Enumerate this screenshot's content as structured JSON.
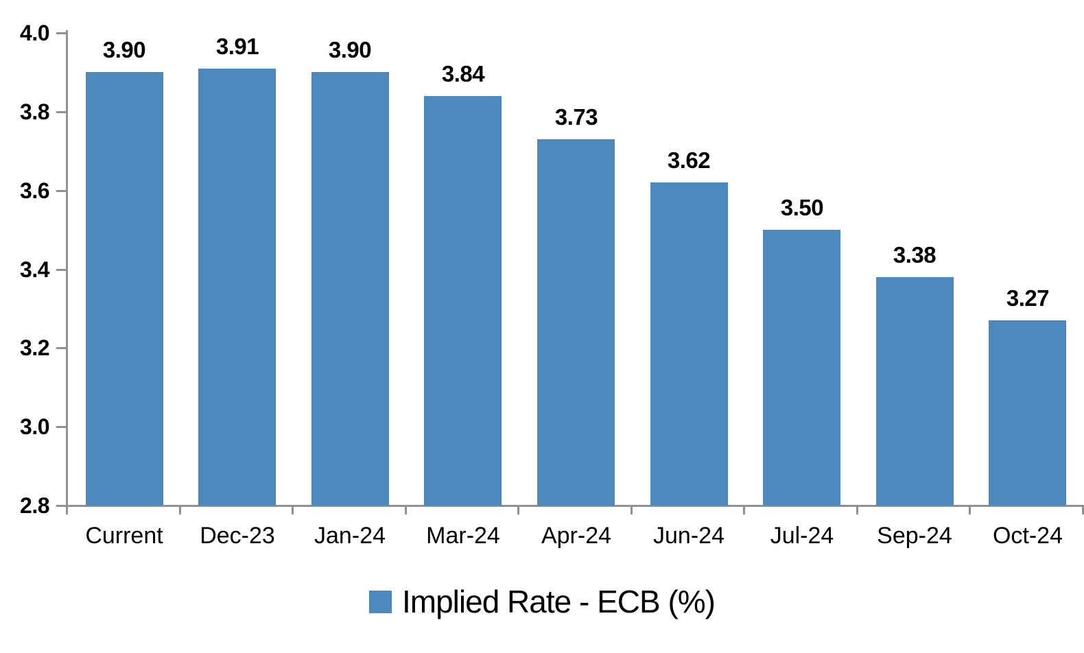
{
  "chart_data": {
    "type": "bar",
    "categories": [
      "Current",
      "Dec-23",
      "Jan-24",
      "Mar-24",
      "Apr-24",
      "Jun-24",
      "Jul-24",
      "Sep-24",
      "Oct-24"
    ],
    "values": [
      3.9,
      3.91,
      3.9,
      3.84,
      3.73,
      3.62,
      3.5,
      3.38,
      3.27
    ],
    "value_labels": [
      "3.90",
      "3.91",
      "3.90",
      "3.84",
      "3.73",
      "3.62",
      "3.50",
      "3.38",
      "3.27"
    ],
    "series_name": "Implied Rate - ECB (%)",
    "title": "",
    "xlabel": "",
    "ylabel": "",
    "ylim": [
      2.8,
      4.0
    ],
    "ytick_step": 0.2,
    "ytick_labels": [
      "2.8",
      "3.0",
      "3.2",
      "3.4",
      "3.6",
      "3.8",
      "4.0"
    ],
    "grid": false,
    "legend": {
      "label": "Implied Rate - ECB (%)",
      "position": "bottom-center"
    },
    "colors": {
      "bar": "#4E89BD",
      "axis": "#909090",
      "text": "#000000",
      "background": "#FFFFFF"
    }
  }
}
